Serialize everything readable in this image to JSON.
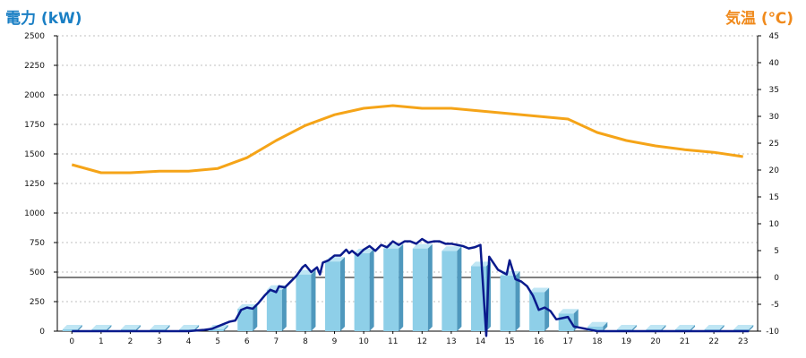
{
  "chart_data": {
    "type": "bar+line",
    "left_axis_title": "電力 (kW)",
    "right_axis_title": "気温 (℃)",
    "colors": {
      "left_title": "#1a7fc4",
      "right_title": "#f08a1c",
      "bar_front": "#8ecfe8",
      "bar_side": "#4f98bd",
      "bar_top": "#bfe6f4",
      "power_line": "#0a1a8c",
      "temperature_line": "#f5a418",
      "grid": "#bfbfbf",
      "zero_line": "#000000"
    },
    "left_axis": {
      "min": 0,
      "max": 2500,
      "step": 250,
      "ticks": [
        "0",
        "250",
        "500",
        "750",
        "1000",
        "1250",
        "1500",
        "1750",
        "2000",
        "2250",
        "2500"
      ]
    },
    "right_axis": {
      "min": -10,
      "max": 45,
      "step": 5,
      "ticks": [
        "-10",
        "-5",
        "0",
        "5",
        "10",
        "15",
        "20",
        "25",
        "30",
        "35",
        "40",
        "45"
      ]
    },
    "categories": [
      "0",
      "1",
      "2",
      "3",
      "4",
      "5",
      "6",
      "7",
      "8",
      "9",
      "10",
      "11",
      "12",
      "13",
      "14",
      "15",
      "16",
      "17",
      "18",
      "19",
      "20",
      "21",
      "22",
      "23"
    ],
    "grid": true,
    "hourly_power_bars": [
      0,
      0,
      0,
      0,
      0,
      10,
      190,
      350,
      480,
      590,
      660,
      700,
      700,
      680,
      550,
      470,
      330,
      150,
      40,
      0,
      0,
      0,
      0,
      0
    ],
    "temperature": [
      21,
      19.5,
      19.5,
      19.8,
      19.8,
      20.3,
      22.3,
      25.5,
      28.3,
      30.3,
      31.5,
      32,
      31.5,
      31.5,
      31,
      30.5,
      30,
      29.5,
      27,
      25.5,
      24.5,
      23.8,
      23.3,
      22.5
    ],
    "power_realtime": {
      "x": [
        0,
        1,
        2,
        3,
        4,
        4.5,
        4.8,
        5,
        5.2,
        5.4,
        5.6,
        5.8,
        6,
        6.2,
        6.4,
        6.6,
        6.8,
        7,
        7.1,
        7.3,
        7.5,
        7.7,
        7.9,
        8,
        8.2,
        8.4,
        8.5,
        8.6,
        8.8,
        9,
        9.2,
        9.4,
        9.5,
        9.6,
        9.8,
        10,
        10.2,
        10.4,
        10.6,
        10.8,
        11,
        11.2,
        11.4,
        11.6,
        11.8,
        12,
        12.2,
        12.4,
        12.6,
        12.8,
        13,
        13.2,
        13.4,
        13.6,
        13.8,
        14,
        14.2,
        14.3,
        14.6,
        14.9,
        15,
        15.2,
        15.4,
        15.6,
        15.8,
        16,
        16.2,
        16.4,
        16.6,
        16.8,
        17,
        17.2,
        17.4,
        17.6,
        17.8,
        18,
        18.2,
        18.4,
        19,
        20,
        21,
        22,
        23.2
      ],
      "y": [
        0,
        0,
        0,
        0,
        0,
        10,
        20,
        40,
        60,
        80,
        90,
        180,
        200,
        190,
        240,
        300,
        350,
        330,
        380,
        370,
        420,
        470,
        540,
        560,
        500,
        540,
        480,
        580,
        600,
        640,
        640,
        690,
        660,
        680,
        640,
        690,
        720,
        680,
        730,
        710,
        760,
        730,
        760,
        760,
        740,
        780,
        750,
        760,
        760,
        740,
        740,
        730,
        720,
        700,
        710,
        730,
        -40,
        630,
        520,
        480,
        600,
        440,
        420,
        380,
        300,
        180,
        200,
        170,
        100,
        110,
        120,
        40,
        30,
        20,
        10,
        0,
        0,
        0,
        0,
        0,
        0,
        0,
        0
      ]
    }
  }
}
